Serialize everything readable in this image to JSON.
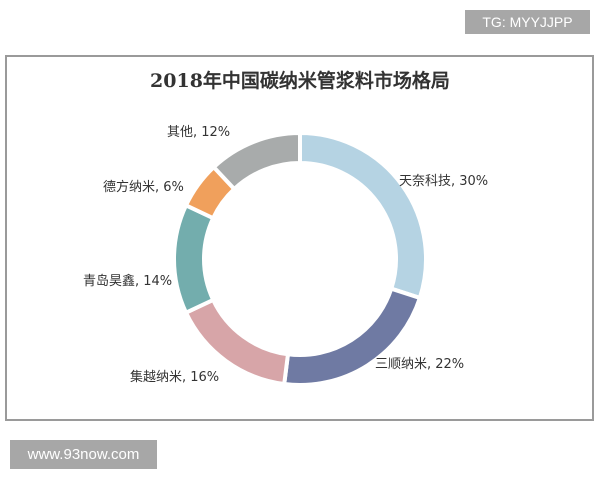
{
  "watermarks": {
    "top_right": "TG: MYYJJPP",
    "bottom_left": "www.93now.com"
  },
  "chart_data": {
    "type": "pie",
    "variant": "donut",
    "title": "2018年中国碳纳米管浆料市场格局",
    "start_angle_deg": 0,
    "direction": "clockwise",
    "slices": [
      {
        "name": "天奈科技",
        "value": 30,
        "color": "#b5d3e3",
        "label": "天奈科技, 30%"
      },
      {
        "name": "三顺纳米",
        "value": 22,
        "color": "#6f7aa3",
        "label": "三顺纳米, 22%"
      },
      {
        "name": "集越纳米",
        "value": 16,
        "color": "#d7a5a8",
        "label": "集越纳米, 16%"
      },
      {
        "name": "青岛昊鑫",
        "value": 14,
        "color": "#73adad",
        "label": "青岛昊鑫, 14%"
      },
      {
        "name": "德方纳米",
        "value": 6,
        "color": "#f0a05c",
        "label": "德方纳米, 6%"
      },
      {
        "name": "其他",
        "value": 12,
        "color": "#a8abab",
        "label": "其他, 12%"
      }
    ],
    "categories": [
      "天奈科技",
      "三顺纳米",
      "集越纳米",
      "青岛昊鑫",
      "德方纳米",
      "其他"
    ],
    "values": [
      30,
      22,
      16,
      14,
      6,
      12
    ],
    "unit": "%",
    "legend": "none (data labels outside)"
  }
}
